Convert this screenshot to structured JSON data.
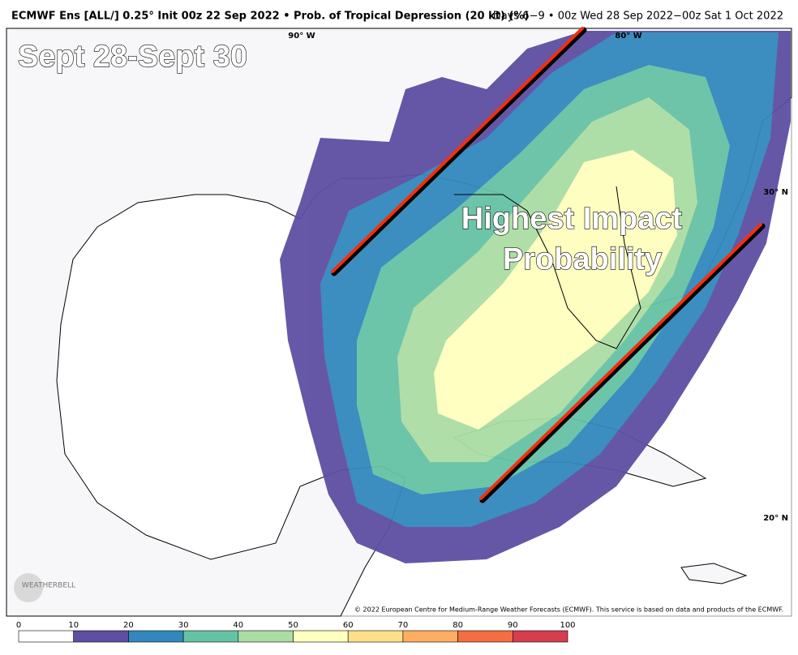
{
  "header": {
    "title": "ECMWF Ens [ALL/] 0.25° Init 00z 22 Sep 2022 • Prob. of Tropical Depression (20 kt) (%)",
    "valid": "Days 6−9 • 00z Wed 28 Sep 2022−00z Sat 1 Oct 2022"
  },
  "annotations": {
    "dates": "Sept 28-Sept 30",
    "impact_line1": "Highest Impact",
    "impact_line2": "Probability"
  },
  "grid_labels": {
    "lon_90": "90° W",
    "lon_80": "80° W",
    "lat_30": "30° N",
    "lat_20": "20° N"
  },
  "logo": "WEATHERBELL",
  "copyright": "© 2022 European Centre for Medium-Range Weather Forecasts (ECMWF). This service is based on data and products of the ECMWF.",
  "colorbar": {
    "ticks": [
      0,
      10,
      20,
      30,
      40,
      50,
      60,
      70,
      80,
      90,
      100
    ],
    "colors": [
      "#ffffff",
      "#5e4fa2",
      "#3288bd",
      "#66c2a5",
      "#abdda4",
      "#ffffbf",
      "#fee08b",
      "#fdae61",
      "#f46d43",
      "#d53e4f",
      "#9e0142"
    ]
  }
}
